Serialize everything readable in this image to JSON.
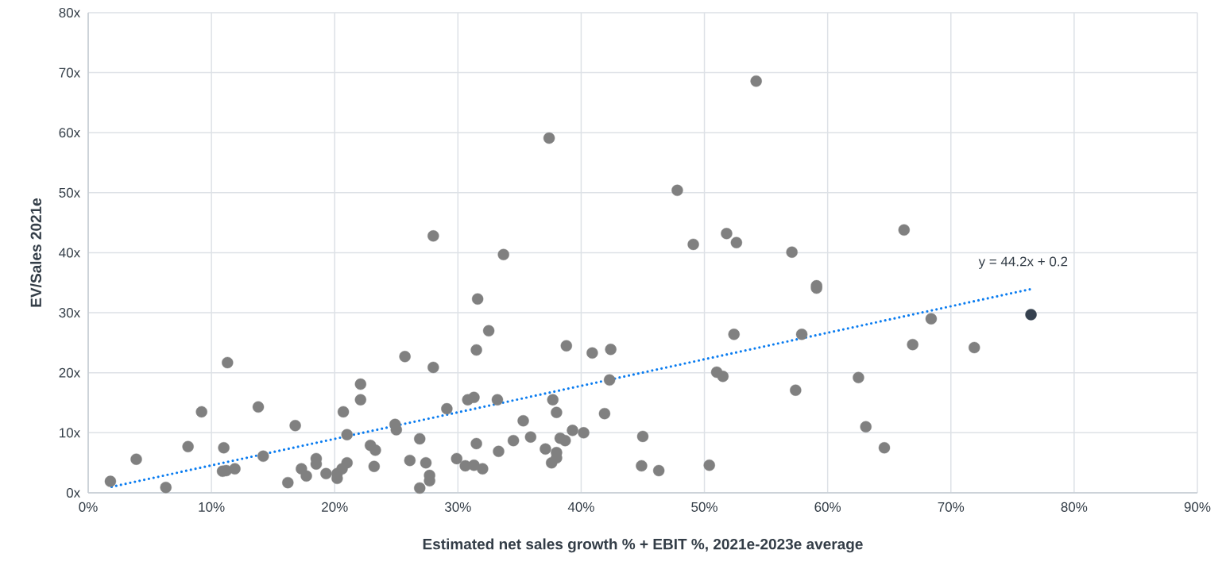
{
  "chart_data": {
    "type": "scatter",
    "xlabel": "Estimated net sales growth % + EBIT %, 2021e-2023e average",
    "ylabel": "EV/Sales 2021e",
    "xlim": [
      0,
      90
    ],
    "ylim": [
      0,
      80
    ],
    "xticks": [
      {
        "value": 0,
        "label": "0%"
      },
      {
        "value": 10,
        "label": "10%"
      },
      {
        "value": 20,
        "label": "20%"
      },
      {
        "value": 30,
        "label": "30%"
      },
      {
        "value": 40,
        "label": "40%"
      },
      {
        "value": 50,
        "label": "50%"
      },
      {
        "value": 60,
        "label": "60%"
      },
      {
        "value": 70,
        "label": "70%"
      },
      {
        "value": 80,
        "label": "80%"
      },
      {
        "value": 90,
        "label": "90%"
      }
    ],
    "yticks": [
      {
        "value": 0,
        "label": "0x"
      },
      {
        "value": 10,
        "label": "10x"
      },
      {
        "value": 20,
        "label": "20x"
      },
      {
        "value": 30,
        "label": "30x"
      },
      {
        "value": 40,
        "label": "40x"
      },
      {
        "value": 50,
        "label": "50x"
      },
      {
        "value": 60,
        "label": "60x"
      },
      {
        "value": 70,
        "label": "70x"
      },
      {
        "value": 80,
        "label": "80x"
      }
    ],
    "grid": true,
    "marker": "circle",
    "annotations": [
      "y = 44.2x + 0.2"
    ],
    "series": [
      {
        "color": "#808080",
        "x": [
          1.8,
          3.9,
          6.3,
          8.1,
          9.2,
          11.3,
          11.0,
          10.9,
          11.2,
          11.9,
          13.8,
          14.2,
          16.2,
          16.8,
          17.3,
          17.7,
          18.5,
          18.5,
          19.3,
          20.2,
          20.2,
          20.7,
          21.0,
          21.0,
          20.6,
          22.1,
          22.1,
          22.9,
          23.3,
          23.2,
          31.6,
          32.5,
          25.7,
          28.0,
          31.5,
          38.8,
          40.9,
          42.4,
          42.3,
          29.1,
          30.8,
          31.3,
          33.2,
          37.7,
          38.0,
          41.9,
          24.9,
          25.0,
          35.3,
          26.9,
          34.5,
          35.9,
          38.3,
          38.7,
          39.3,
          40.2,
          45.0,
          31.5,
          33.3,
          37.1,
          38.0,
          38.0,
          37.6,
          26.1,
          27.4,
          29.9,
          30.6,
          31.3,
          32.0,
          27.7,
          27.7,
          26.9,
          44.9,
          46.3,
          49.1,
          52.6,
          51.8,
          57.1,
          59.1,
          59.1,
          52.4,
          57.9,
          68.4,
          66.9,
          71.9,
          51.0,
          51.5,
          57.4,
          62.5,
          63.1,
          64.6,
          50.4,
          66.2,
          54.2,
          37.4,
          47.8,
          28.0,
          33.7
        ],
        "values": [
          1.9,
          5.6,
          0.9,
          7.7,
          13.5,
          21.7,
          7.5,
          3.6,
          3.7,
          4.0,
          14.3,
          6.1,
          1.7,
          11.2,
          4.0,
          2.8,
          5.7,
          4.8,
          3.2,
          3.2,
          2.4,
          13.5,
          9.7,
          5.0,
          4.0,
          15.5,
          18.1,
          7.9,
          7.1,
          4.4,
          32.3,
          27.0,
          22.7,
          20.9,
          23.8,
          24.5,
          23.3,
          23.9,
          18.8,
          14.0,
          15.5,
          15.9,
          15.5,
          15.5,
          13.4,
          13.2,
          11.4,
          10.5,
          12.0,
          9.0,
          8.7,
          9.3,
          9.1,
          8.7,
          10.4,
          10.0,
          9.4,
          8.2,
          6.9,
          7.3,
          6.7,
          5.8,
          5.0,
          5.4,
          5.0,
          5.7,
          4.5,
          4.6,
          4.0,
          2.9,
          2.0,
          0.8,
          4.5,
          3.7,
          41.4,
          41.7,
          43.2,
          40.1,
          34.5,
          34.1,
          26.4,
          26.4,
          29.0,
          24.7,
          24.2,
          20.1,
          19.4,
          17.1,
          19.2,
          11.0,
          7.5,
          4.6,
          43.8,
          68.6,
          59.1,
          50.4,
          42.8,
          39.7
        ]
      },
      {
        "color": "#36414f",
        "x": [
          76.5
        ],
        "values": [
          29.7
        ]
      },
      {
        "type": "line",
        "color": "#0a7cf0",
        "line_style": "dotted",
        "marker": "none",
        "x": [
          1.9,
          76.6
        ],
        "values": [
          1.0,
          34.0
        ]
      }
    ]
  }
}
